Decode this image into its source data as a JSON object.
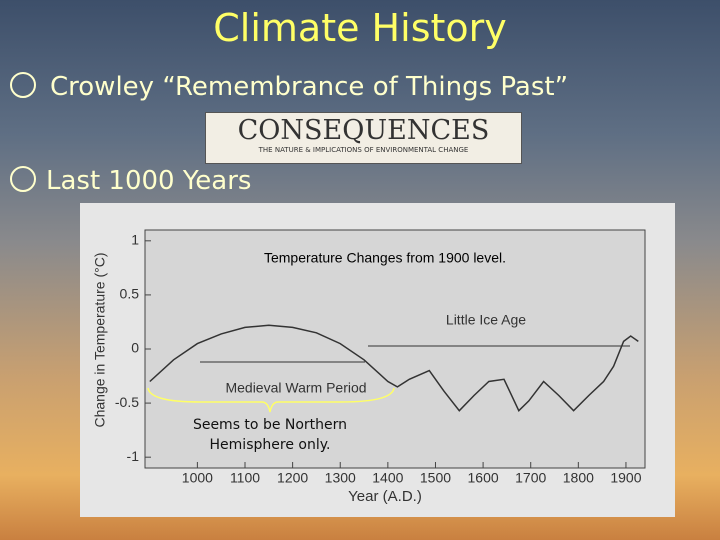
{
  "slide": {
    "title": "Climate History",
    "bullets": [
      "Crowley “Remembrance of Things Past”",
      "Last 1000 Years"
    ],
    "logo": {
      "name": "CONSEQUENCES",
      "subtitle": "THE NATURE & IMPLICATIONS OF ENVIRONMENTAL CHANGE"
    }
  },
  "chart_data": {
    "type": "line",
    "title": "Temperature Changes from 1900 level.",
    "x_label": "Year (A.D.)",
    "y_label": "Change in Temperature (°C)",
    "annotations": [
      "Little Ice Age",
      "Medieval Warm Period",
      "Seems to be Northern Hemisphere only."
    ],
    "x": [
      900,
      950,
      1000,
      1050,
      1100,
      1150,
      1200,
      1250,
      1300,
      1350,
      1400,
      1420,
      1445,
      1487,
      1518,
      1550,
      1581,
      1612,
      1644,
      1675,
      1696,
      1727,
      1759,
      1790,
      1822,
      1853,
      1874,
      1895,
      1910,
      1926
    ],
    "series": [
      {
        "name": "Temperature",
        "color": "#333333",
        "values": [
          -0.3,
          -0.1,
          0.05,
          0.14,
          0.2,
          0.22,
          0.2,
          0.15,
          0.05,
          -0.1,
          -0.3,
          -0.35,
          -0.28,
          -0.2,
          -0.39,
          -0.57,
          -0.43,
          -0.3,
          -0.28,
          -0.57,
          -0.48,
          -0.3,
          -0.43,
          -0.57,
          -0.43,
          -0.3,
          -0.16,
          0.07,
          0.12,
          0.07
        ]
      }
    ],
    "xlim": [
      890,
      1940
    ],
    "ylim": [
      -1.1,
      1.1
    ],
    "xticks": [
      1000,
      1100,
      1200,
      1300,
      1400,
      1500,
      1600,
      1700,
      1800,
      1900
    ],
    "yticks": [
      -1,
      -0.5,
      0,
      0.5,
      1
    ],
    "grid": false
  }
}
